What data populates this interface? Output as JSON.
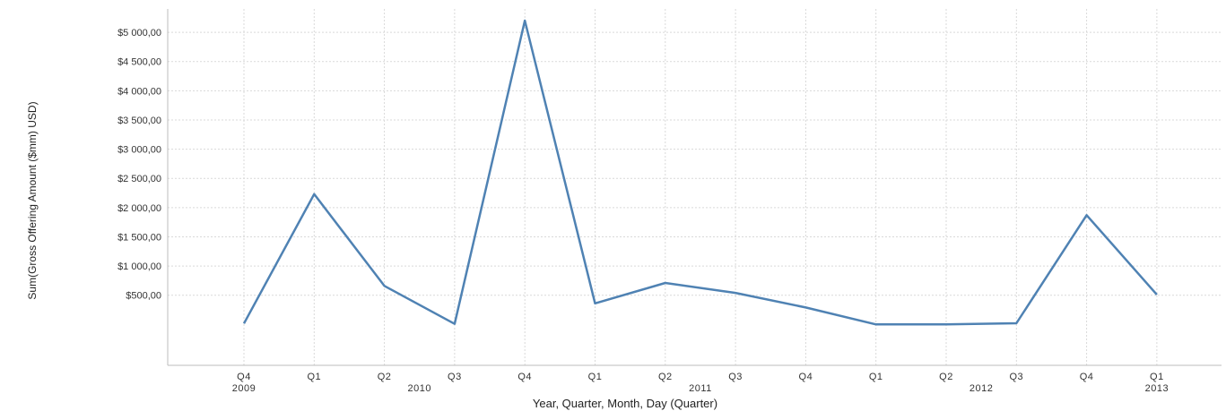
{
  "chart_data": {
    "type": "line",
    "xlabel": "Year, Quarter, Month, Day (Quarter)",
    "ylabel": "Sum(Gross Offering Amount ($mm) USD)",
    "ylim": [
      -700,
      5400
    ],
    "yticks": [
      {
        "value": 500,
        "label": "$500,00"
      },
      {
        "value": 1000,
        "label": "$1 000,00"
      },
      {
        "value": 1500,
        "label": "$1 500,00"
      },
      {
        "value": 2000,
        "label": "$2 000,00"
      },
      {
        "value": 2500,
        "label": "$2 500,00"
      },
      {
        "value": 3000,
        "label": "$3 000,00"
      },
      {
        "value": 3500,
        "label": "$3 500,00"
      },
      {
        "value": 4000,
        "label": "$4 000,00"
      },
      {
        "value": 4500,
        "label": "$4 500,00"
      },
      {
        "value": 5000,
        "label": "$5 000,00"
      }
    ],
    "categories": [
      "Q4",
      "Q1",
      "Q2",
      "Q3",
      "Q4",
      "Q1",
      "Q2",
      "Q3",
      "Q4",
      "Q1",
      "Q2",
      "Q3",
      "Q4",
      "Q1"
    ],
    "years": [
      {
        "label": "2009",
        "index": 0
      },
      {
        "label": "2010",
        "index": 2.5
      },
      {
        "label": "2011",
        "index": 6.5
      },
      {
        "label": "2012",
        "index": 10.5
      },
      {
        "label": "2013",
        "index": 13
      }
    ],
    "values": [
      15,
      2230,
      660,
      10,
      5200,
      360,
      710,
      540,
      290,
      0,
      0,
      20,
      1870,
      510
    ],
    "line_color": "#4f82b3",
    "grid": true
  }
}
